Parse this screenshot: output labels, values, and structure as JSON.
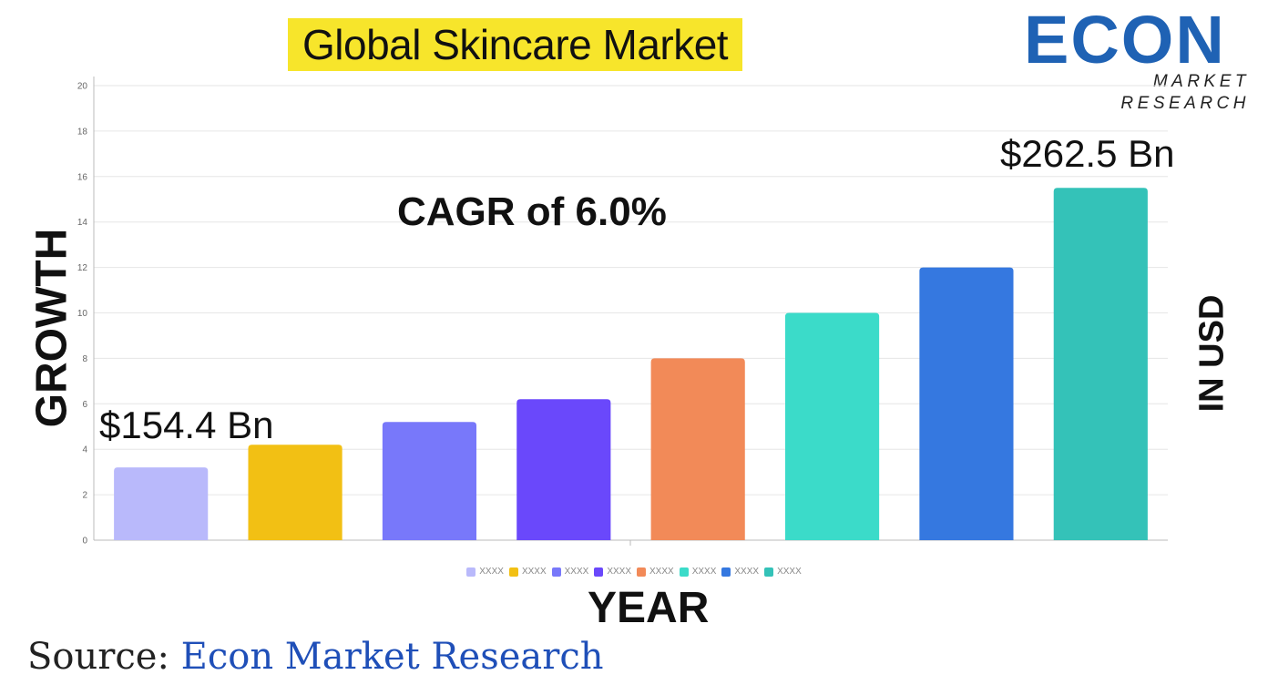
{
  "header": {
    "title": "Global Skincare Market",
    "logo_main": "ECON",
    "logo_sub": "MARKET RESEARCH"
  },
  "annotations": {
    "cagr": "CAGR of 6.0%",
    "start_value": "$154.4 Bn",
    "end_value": "$262.5 Bn",
    "right_axis_label": "IN USD"
  },
  "footer": {
    "source_prefix": "Source:",
    "source_name": "Econ Market Research"
  },
  "chart_data": {
    "type": "bar",
    "categories": [
      "XXXX",
      "XXXX",
      "XXXX",
      "XXXX",
      "XXXX",
      "XXXX",
      "XXXX",
      "XXXX"
    ],
    "values": [
      3.2,
      4.2,
      5.2,
      6.2,
      8.0,
      10.0,
      12.0,
      15.5
    ],
    "colors": [
      "#b9b9fb",
      "#f2c014",
      "#7878fa",
      "#6a48fb",
      "#f28a58",
      "#3bdbc9",
      "#3578e0",
      "#34c2b8"
    ],
    "legend": [
      "XXXX",
      "XXXX",
      "XXXX",
      "XXXX",
      "XXXX",
      "XXXX",
      "XXXX",
      "XXXX"
    ],
    "xlabel": "YEAR",
    "ylabel": "GROWTH",
    "ylim": [
      0,
      20
    ],
    "yticks": [
      0,
      2,
      4,
      6,
      8,
      10,
      12,
      14,
      16,
      18,
      20
    ],
    "grid": true,
    "legend_position": "bottom"
  }
}
